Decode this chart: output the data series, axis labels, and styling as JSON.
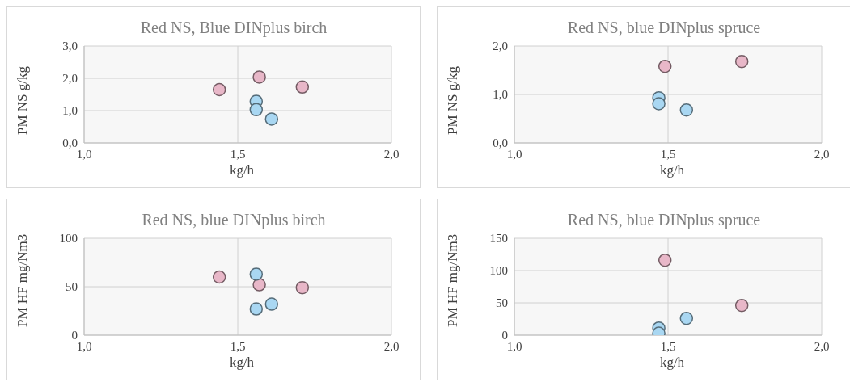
{
  "chart_data": [
    {
      "type": "scatter",
      "title": "Red NS, Blue DINplus birch",
      "xlabel": "kg/h",
      "ylabel": "PM NS g/kg",
      "xlim": [
        1,
        2
      ],
      "xticks": [
        {
          "value": 1,
          "label": "1,0"
        },
        {
          "value": 1.5,
          "label": "1,5"
        },
        {
          "value": 2,
          "label": "2,0"
        }
      ],
      "ylim": [
        0,
        3
      ],
      "yticks": [
        {
          "value": 0,
          "label": "0,0"
        },
        {
          "value": 1,
          "label": "1,0"
        },
        {
          "value": 2,
          "label": "2,0"
        },
        {
          "value": 3,
          "label": "3,0"
        }
      ],
      "grid": true,
      "marker": "circle",
      "series": [
        {
          "color": "#e8b7c8",
          "x": [
            1.44,
            1.57,
            1.71
          ],
          "values": [
            1.65,
            2.04,
            1.73
          ]
        },
        {
          "color": "#a9d7f2",
          "x": [
            1.56,
            1.56,
            1.61
          ],
          "values": [
            1.29,
            1.03,
            0.74
          ]
        }
      ]
    },
    {
      "type": "scatter",
      "title": "Red NS, blue DINplus spruce",
      "xlabel": "kg/h",
      "ylabel": "PM NS g/kg",
      "xlim": [
        1,
        2
      ],
      "xticks": [
        {
          "value": 1,
          "label": "1,0"
        },
        {
          "value": 1.5,
          "label": "1,5"
        },
        {
          "value": 2,
          "label": "2,0"
        }
      ],
      "ylim": [
        0,
        2
      ],
      "yticks": [
        {
          "value": 0,
          "label": "0,0"
        },
        {
          "value": 1,
          "label": "1,0"
        },
        {
          "value": 2,
          "label": "2,0"
        }
      ],
      "grid": true,
      "marker": "circle",
      "series": [
        {
          "color": "#e8b7c8",
          "x": [
            1.49,
            1.74
          ],
          "values": [
            1.58,
            1.68
          ]
        },
        {
          "color": "#a9d7f2",
          "x": [
            1.47,
            1.47,
            1.56
          ],
          "values": [
            0.93,
            0.81,
            0.68
          ]
        }
      ]
    },
    {
      "type": "scatter",
      "title": "Red NS, blue DINplus birch",
      "xlabel": "kg/h",
      "ylabel": "PM HF mg/Nm3",
      "xlim": [
        1,
        2
      ],
      "xticks": [
        {
          "value": 1,
          "label": "1,0"
        },
        {
          "value": 1.5,
          "label": "1,5"
        },
        {
          "value": 2,
          "label": "2,0"
        }
      ],
      "ylim": [
        0,
        100
      ],
      "yticks": [
        0,
        50,
        100
      ],
      "grid": true,
      "marker": "circle",
      "series": [
        {
          "color": "#e8b7c8",
          "x": [
            1.44,
            1.57,
            1.71
          ],
          "values": [
            60,
            52,
            49
          ]
        },
        {
          "color": "#a9d7f2",
          "x": [
            1.56,
            1.56,
            1.61
          ],
          "values": [
            63,
            27,
            32
          ]
        }
      ]
    },
    {
      "type": "scatter",
      "title": "Red NS, blue DINplus spruce",
      "xlabel": "kg/h",
      "ylabel": "PM HF mg/Nm3",
      "xlim": [
        1,
        2
      ],
      "xticks": [
        {
          "value": 1,
          "label": "1,0"
        },
        {
          "value": 1.5,
          "label": "1,5"
        },
        {
          "value": 2,
          "label": "2,0"
        }
      ],
      "ylim": [
        0,
        150
      ],
      "yticks": [
        0,
        50,
        100,
        150
      ],
      "grid": true,
      "marker": "circle",
      "series": [
        {
          "color": "#e8b7c8",
          "x": [
            1.49,
            1.74
          ],
          "values": [
            116,
            46
          ]
        },
        {
          "color": "#a9d7f2",
          "x": [
            1.47,
            1.47,
            1.56
          ],
          "values": [
            11,
            3,
            26
          ]
        }
      ]
    }
  ]
}
